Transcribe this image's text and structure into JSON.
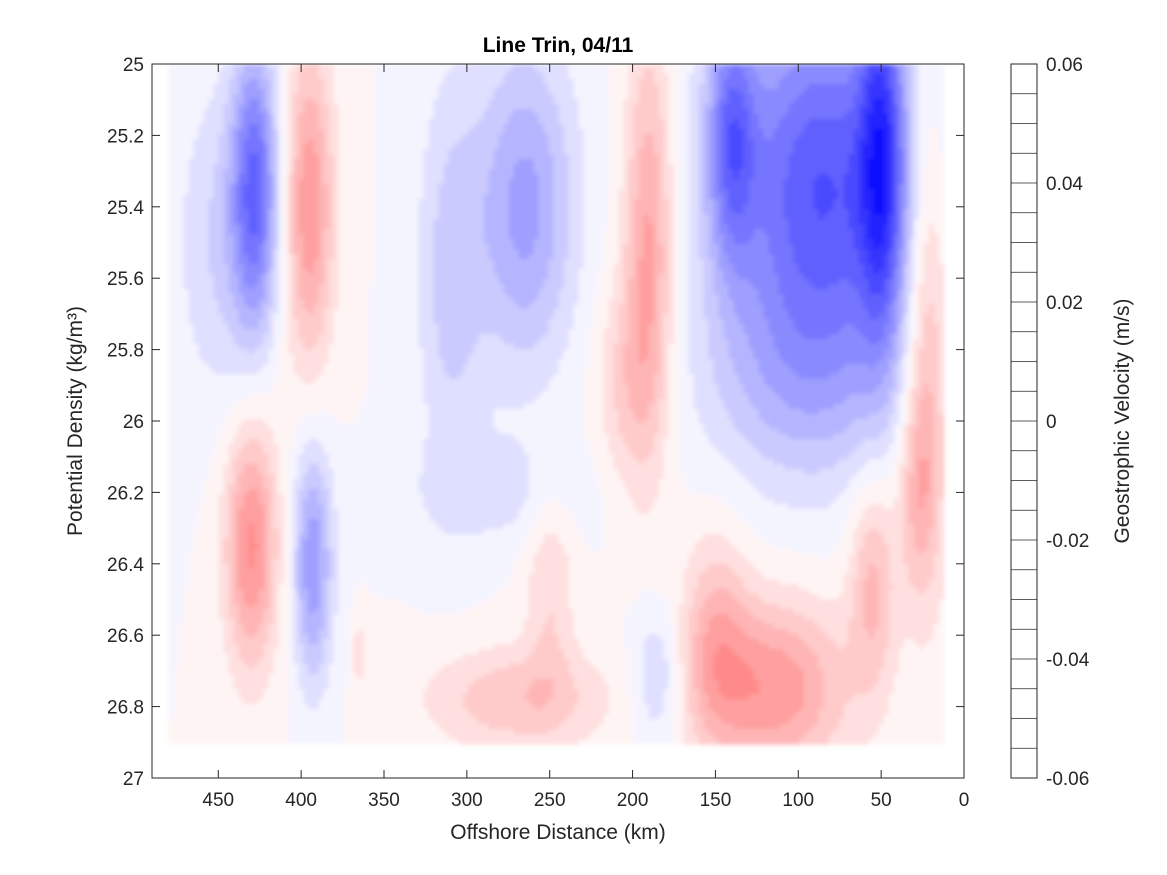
{
  "chart_data": {
    "type": "heatmap",
    "subtype": "filled-contour",
    "title": "Line Trin, 04/11",
    "xlabel": "Offshore Distance (km)",
    "ylabel": "Potential Density (kg/m³)",
    "colorbar_label": "Geostrophic Velocity (m/s)",
    "x_reversed": true,
    "y_reversed": true,
    "xlim": [
      0,
      490
    ],
    "ylim": [
      25,
      27
    ],
    "xticks": [
      450,
      400,
      350,
      300,
      250,
      200,
      150,
      100,
      50,
      0
    ],
    "yticks": [
      "25",
      "25.2",
      "25.4",
      "25.6",
      "25.8",
      "26",
      "26.2",
      "26.4",
      "26.6",
      "26.8",
      "27"
    ],
    "colorbar_range": [
      -0.06,
      0.06
    ],
    "colorbar_ticks": [
      "0.06",
      "0.04",
      "0.02",
      "0",
      "-0.02",
      "-0.04",
      "-0.06"
    ],
    "colorbar_levels": 24,
    "colormap": {
      "negative": "#0000ff",
      "zero": "#ffffff",
      "positive": "#ff0000"
    },
    "grid": false,
    "data_extent": {
      "x": [
        15,
        480
      ],
      "y": [
        25,
        26.9
      ]
    },
    "features": [
      {
        "x_center": 22,
        "y_center": 25.7,
        "x_halfwidth": 14,
        "y_halfwidth": 0.7,
        "velocity": 0.02
      },
      {
        "x_center": 28,
        "y_center": 26.2,
        "x_halfwidth": 12,
        "y_halfwidth": 0.3,
        "velocity": 0.012
      },
      {
        "x_center": 55,
        "y_center": 26.45,
        "x_halfwidth": 14,
        "y_halfwidth": 0.3,
        "velocity": 0.016
      },
      {
        "x_center": 85,
        "y_center": 25.35,
        "x_halfwidth": 60,
        "y_halfwidth": 0.55,
        "velocity": -0.04
      },
      {
        "x_center": 50,
        "y_center": 25.25,
        "x_halfwidth": 13,
        "y_halfwidth": 0.5,
        "velocity": -0.03
      },
      {
        "x_center": 140,
        "y_center": 25.2,
        "x_halfwidth": 14,
        "y_halfwidth": 0.35,
        "velocity": -0.025
      },
      {
        "x_center": 100,
        "y_center": 25.9,
        "x_halfwidth": 60,
        "y_halfwidth": 0.3,
        "velocity": -0.01
      },
      {
        "x_center": 115,
        "y_center": 26.75,
        "x_halfwidth": 45,
        "y_halfwidth": 0.25,
        "velocity": 0.024
      },
      {
        "x_center": 150,
        "y_center": 26.6,
        "x_halfwidth": 20,
        "y_halfwidth": 0.3,
        "velocity": 0.014
      },
      {
        "x_center": 185,
        "y_center": 26.72,
        "x_halfwidth": 15,
        "y_halfwidth": 0.2,
        "velocity": -0.012
      },
      {
        "x_center": 190,
        "y_center": 25.5,
        "x_halfwidth": 15,
        "y_halfwidth": 0.6,
        "velocity": 0.022
      },
      {
        "x_center": 205,
        "y_center": 25.9,
        "x_halfwidth": 18,
        "y_halfwidth": 0.3,
        "velocity": 0.01
      },
      {
        "x_center": 265,
        "y_center": 25.4,
        "x_halfwidth": 30,
        "y_halfwidth": 0.45,
        "velocity": -0.022
      },
      {
        "x_center": 310,
        "y_center": 25.6,
        "x_halfwidth": 20,
        "y_halfwidth": 0.55,
        "velocity": -0.012
      },
      {
        "x_center": 280,
        "y_center": 26.2,
        "x_halfwidth": 55,
        "y_halfwidth": 0.15,
        "velocity": -0.007
      },
      {
        "x_center": 270,
        "y_center": 26.78,
        "x_halfwidth": 55,
        "y_halfwidth": 0.15,
        "velocity": 0.014
      },
      {
        "x_center": 250,
        "y_center": 26.45,
        "x_halfwidth": 15,
        "y_halfwidth": 0.3,
        "velocity": 0.01
      },
      {
        "x_center": 395,
        "y_center": 25.4,
        "x_halfwidth": 15,
        "y_halfwidth": 0.45,
        "velocity": 0.024
      },
      {
        "x_center": 428,
        "y_center": 25.35,
        "x_halfwidth": 14,
        "y_halfwidth": 0.4,
        "velocity": -0.034
      },
      {
        "x_center": 450,
        "y_center": 25.5,
        "x_halfwidth": 25,
        "y_halfwidth": 0.45,
        "velocity": -0.01
      },
      {
        "x_center": 430,
        "y_center": 26.35,
        "x_halfwidth": 16,
        "y_halfwidth": 0.35,
        "velocity": 0.026
      },
      {
        "x_center": 393,
        "y_center": 26.4,
        "x_halfwidth": 12,
        "y_halfwidth": 0.33,
        "velocity": -0.024
      },
      {
        "x_center": 365,
        "y_center": 26.65,
        "x_halfwidth": 4,
        "y_halfwidth": 0.1,
        "velocity": 0.008
      }
    ]
  }
}
